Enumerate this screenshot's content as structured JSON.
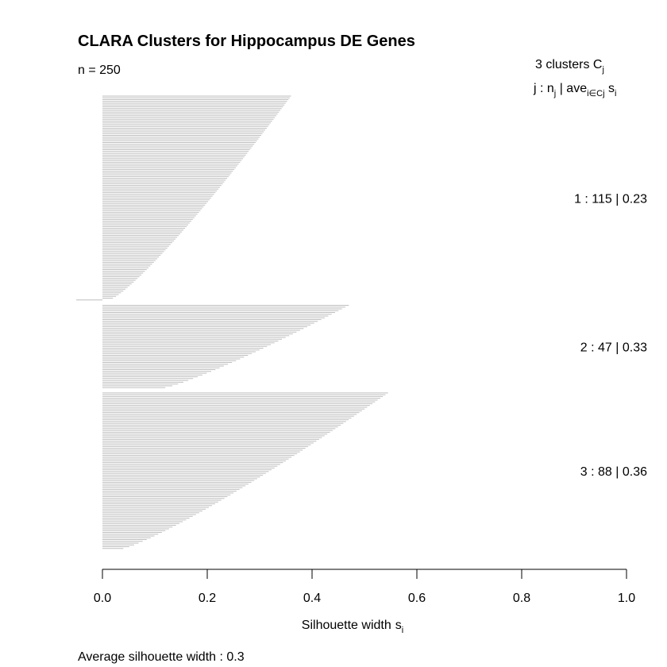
{
  "chart_data": {
    "type": "bar",
    "title": "CLARA Clusters for Hippocampus DE Genes",
    "n_label": "n = 250",
    "xlabel": "Silhouette width",
    "xlabel_sub": "i",
    "xlabel_var": "s",
    "xlim": [
      0,
      1
    ],
    "xticks": [
      "0.0",
      "0.2",
      "0.4",
      "0.6",
      "0.8",
      "1.0"
    ],
    "footer": "Average silhouette width :  0.3",
    "legend_header": {
      "count_text": "3  clusters  C",
      "count_sub": "j",
      "row2_a": "j :  n",
      "row2_a_sub": "j",
      "row2_b": " | ave",
      "row2_b_sub": "i∈Cj",
      "row2_c": "  s",
      "row2_c_sub": "i"
    },
    "clusters": [
      {
        "id": 1,
        "size": 115,
        "avg_width": 0.23,
        "summary": "1 :   115  |  0.23",
        "max": 0.36,
        "min": 0.02,
        "negatives": [
          -0.05
        ]
      },
      {
        "id": 2,
        "size": 47,
        "avg_width": 0.33,
        "summary": "2 :   47  |  0.33",
        "max": 0.47,
        "min": 0.12,
        "negatives": []
      },
      {
        "id": 3,
        "size": 88,
        "avg_width": 0.36,
        "summary": "3 :   88  |  0.36",
        "max": 0.545,
        "min": 0.04,
        "negatives": []
      }
    ],
    "bar_color": "#bebebe",
    "grid": false,
    "orientation": "horizontal"
  }
}
